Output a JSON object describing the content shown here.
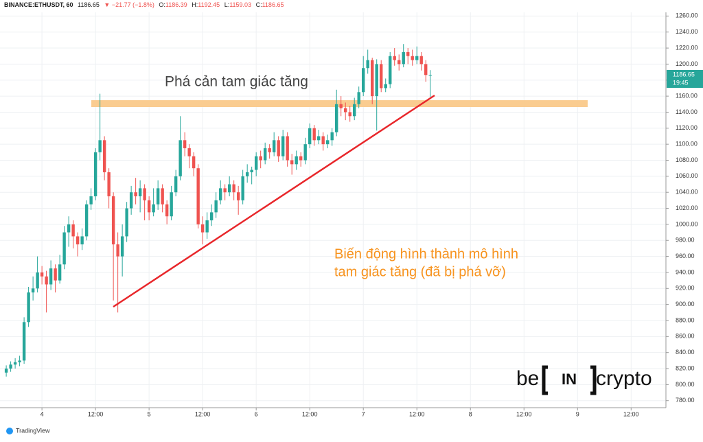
{
  "header": {
    "symbol": "BINANCE:ETHUSDT, 60",
    "price": "1186.65",
    "change": "▼ −21.77 (−1.8%)",
    "ohlc": [
      {
        "label": "O:",
        "value": "1186.39"
      },
      {
        "label": "H:",
        "value": "1192.45"
      },
      {
        "label": "L:",
        "value": "1159.03"
      },
      {
        "label": "C:",
        "value": "1186.65"
      }
    ]
  },
  "chart_data": {
    "type": "candlestick",
    "x": [
      -8,
      -7,
      -6,
      -5,
      -4,
      -3,
      -2,
      -1,
      0,
      1,
      2,
      3,
      4,
      5,
      6,
      7,
      8,
      9,
      10,
      11,
      12,
      13,
      14,
      15,
      16,
      17,
      18,
      19,
      20,
      21,
      22,
      23,
      24,
      25,
      26,
      27,
      28,
      29,
      30,
      31,
      32,
      33,
      34,
      35,
      36,
      37,
      38,
      39,
      40,
      41,
      42,
      43,
      44,
      45,
      46,
      47,
      48,
      49,
      50,
      51,
      52,
      53,
      54,
      55,
      56,
      57,
      58,
      59,
      60,
      61,
      62,
      63,
      64,
      65,
      66,
      67,
      68,
      69,
      70,
      71,
      72,
      73,
      74,
      75,
      76,
      77,
      78,
      79,
      80,
      81,
      82,
      83,
      84,
      85,
      86,
      87
    ],
    "open": [
      815,
      820,
      825,
      828,
      830,
      878,
      915,
      920,
      940,
      935,
      925,
      945,
      930,
      950,
      990,
      1000,
      985,
      975,
      985,
      1025,
      1035,
      1090,
      1105,
      1065,
      1035,
      975,
      960,
      985,
      1020,
      1040,
      1035,
      1045,
      1030,
      1015,
      1025,
      1045,
      1025,
      1010,
      1040,
      1060,
      1105,
      1095,
      1085,
      1070,
      1000,
      990,
      1005,
      1015,
      1030,
      1045,
      1040,
      1050,
      1040,
      1030,
      1060,
      1065,
      1068,
      1085,
      1080,
      1095,
      1090,
      1105,
      1085,
      1110,
      1080,
      1075,
      1085,
      1080,
      1100,
      1120,
      1105,
      1110,
      1100,
      1105,
      1115,
      1150,
      1145,
      1140,
      1135,
      1150,
      1165,
      1195,
      1205,
      1160,
      1200,
      1170,
      1175,
      1210,
      1205,
      1200,
      1215,
      1210,
      1205,
      1210,
      1200,
      1186.39
    ],
    "close": [
      820,
      825,
      828,
      830,
      878,
      915,
      920,
      940,
      935,
      925,
      945,
      930,
      950,
      990,
      1000,
      985,
      975,
      985,
      1025,
      1035,
      1090,
      1105,
      1065,
      1035,
      975,
      960,
      985,
      1020,
      1040,
      1035,
      1045,
      1030,
      1015,
      1025,
      1045,
      1025,
      1010,
      1040,
      1060,
      1105,
      1095,
      1085,
      1070,
      1000,
      990,
      1005,
      1015,
      1030,
      1045,
      1040,
      1050,
      1040,
      1030,
      1060,
      1065,
      1068,
      1085,
      1080,
      1095,
      1090,
      1105,
      1085,
      1110,
      1080,
      1075,
      1085,
      1080,
      1100,
      1120,
      1105,
      1110,
      1100,
      1105,
      1115,
      1150,
      1145,
      1140,
      1135,
      1150,
      1165,
      1195,
      1205,
      1160,
      1200,
      1170,
      1175,
      1210,
      1205,
      1200,
      1215,
      1210,
      1205,
      1210,
      1200,
      1186.39,
      1186.65
    ],
    "high": [
      824,
      829,
      833,
      836,
      884,
      922,
      935,
      960,
      948,
      942,
      955,
      950,
      962,
      998,
      1010,
      1005,
      990,
      995,
      1030,
      1045,
      1095,
      1163,
      1110,
      1070,
      1040,
      990,
      1000,
      1028,
      1048,
      1058,
      1055,
      1050,
      1035,
      1045,
      1055,
      1050,
      1030,
      1048,
      1068,
      1135,
      1115,
      1100,
      1090,
      1075,
      1010,
      1015,
      1025,
      1040,
      1055,
      1050,
      1060,
      1055,
      1048,
      1068,
      1075,
      1072,
      1090,
      1092,
      1102,
      1100,
      1115,
      1110,
      1118,
      1115,
      1088,
      1092,
      1090,
      1108,
      1126,
      1124,
      1118,
      1115,
      1112,
      1120,
      1168,
      1160,
      1152,
      1148,
      1158,
      1172,
      1210,
      1218,
      1208,
      1206,
      1205,
      1182,
      1215,
      1220,
      1212,
      1225,
      1220,
      1218,
      1222,
      1215,
      1205,
      1192.45
    ],
    "low": [
      810,
      816,
      820,
      823,
      826,
      872,
      905,
      915,
      925,
      890,
      918,
      915,
      926,
      944,
      972,
      970,
      960,
      968,
      980,
      1018,
      1030,
      1080,
      1055,
      1020,
      905,
      890,
      935,
      978,
      1012,
      1025,
      1015,
      1005,
      1005,
      1010,
      1018,
      1015,
      1000,
      1005,
      1035,
      1055,
      1085,
      1070,
      1060,
      995,
      975,
      982,
      998,
      1008,
      1025,
      1030,
      1035,
      1030,
      1012,
      1025,
      1052,
      1050,
      1060,
      1070,
      1075,
      1082,
      1085,
      1078,
      1080,
      1072,
      1062,
      1068,
      1072,
      1075,
      1095,
      1098,
      1100,
      1092,
      1095,
      1098,
      1110,
      1135,
      1130,
      1128,
      1130,
      1145,
      1160,
      1188,
      1150,
      1117,
      1165,
      1165,
      1170,
      1198,
      1192,
      1196,
      1200,
      1198,
      1200,
      1192,
      1178,
      1159.03
    ],
    "up_color": "#26a69a",
    "down_color": "#ef5350",
    "xlim": [
      -9.4,
      139.8
    ],
    "xticks": [
      {
        "value": 0,
        "label": "4"
      },
      {
        "value": 12,
        "label": "12:00"
      },
      {
        "value": 24,
        "label": "5"
      },
      {
        "value": 36,
        "label": "12:00"
      },
      {
        "value": 48,
        "label": "6"
      },
      {
        "value": 60,
        "label": "12:00"
      },
      {
        "value": 72,
        "label": "7"
      },
      {
        "value": 84,
        "label": "12:00"
      },
      {
        "value": 96,
        "label": "8"
      },
      {
        "value": 108,
        "label": "12:00"
      },
      {
        "value": 120,
        "label": "9"
      },
      {
        "value": 132,
        "label": "12:00"
      }
    ],
    "ylim": [
      771.2,
      1280
    ],
    "yticks": [
      {
        "value": 780,
        "label": "780.00"
      },
      {
        "value": 800,
        "label": "800.00"
      },
      {
        "value": 820,
        "label": "820.00"
      },
      {
        "value": 840,
        "label": "840.00"
      },
      {
        "value": 860,
        "label": "860.00"
      },
      {
        "value": 880,
        "label": "880.00"
      },
      {
        "value": 900,
        "label": "900.00"
      },
      {
        "value": 920,
        "label": "920.00"
      },
      {
        "value": 940,
        "label": "940.00"
      },
      {
        "value": 960,
        "label": "960.00"
      },
      {
        "value": 980,
        "label": "980.00"
      },
      {
        "value": 1000,
        "label": "1000.00"
      },
      {
        "value": 1020,
        "label": "1020.00"
      },
      {
        "value": 1040,
        "label": "1040.00"
      },
      {
        "value": 1060,
        "label": "1060.00"
      },
      {
        "value": 1080,
        "label": "1080.00"
      },
      {
        "value": 1100,
        "label": "1100.00"
      },
      {
        "value": 1120,
        "label": "1120.00"
      },
      {
        "value": 1140,
        "label": "1140.00"
      },
      {
        "value": 1160,
        "label": "1160.00"
      },
      {
        "value": 1180,
        "label": "1180.00"
      },
      {
        "value": 1200,
        "label": "1200.00"
      },
      {
        "value": 1220,
        "label": "1220.00"
      },
      {
        "value": 1240,
        "label": "1240.00"
      },
      {
        "value": 1260,
        "label": "1260.00"
      }
    ],
    "grid": true,
    "last_price": {
      "value": 1186.65,
      "label": "1186.65",
      "countdown": "19:45"
    },
    "annotations": [
      "Phá cản tam giác tăng",
      "Biến động hình thành mô hình",
      "tam giác tăng (đã bị phá vỡ)"
    ]
  },
  "footer": {
    "brand": "TradingView"
  },
  "logo": {
    "left": "be",
    "middle": "IN",
    "right": "crypto"
  }
}
